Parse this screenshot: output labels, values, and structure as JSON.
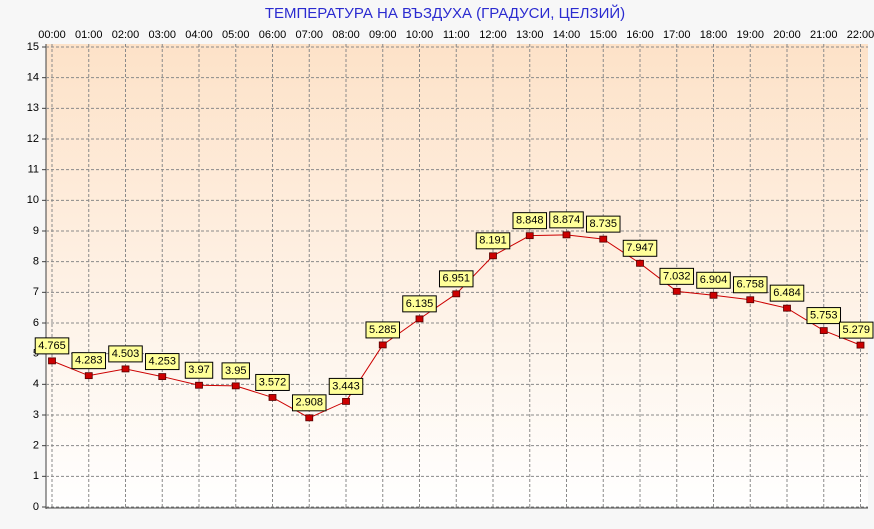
{
  "chart_data": {
    "type": "line",
    "title": "ТЕМПЕРАТУРА НА ВЪЗДУХА  (ГРАДУСИ, ЦЕЛЗИЙ)",
    "categories": [
      "00:00",
      "01:00",
      "02:00",
      "03:00",
      "04:00",
      "05:00",
      "06:00",
      "07:00",
      "08:00",
      "09:00",
      "10:00",
      "11:00",
      "12:00",
      "13:00",
      "14:00",
      "15:00",
      "16:00",
      "17:00",
      "18:00",
      "19:00",
      "20:00",
      "21:00",
      "22:00"
    ],
    "values": [
      4.765,
      4.283,
      4.503,
      4.253,
      3.97,
      3.95,
      3.572,
      2.908,
      3.443,
      5.285,
      6.135,
      6.951,
      8.191,
      8.848,
      8.874,
      8.735,
      7.947,
      7.032,
      6.904,
      6.758,
      6.484,
      5.753,
      5.279
    ],
    "color": "#cc0000",
    "ylim": [
      0,
      15
    ],
    "yticks": [
      0,
      1,
      2,
      3,
      4,
      5,
      6,
      7,
      8,
      9,
      10,
      11,
      12,
      13,
      14,
      15
    ],
    "grid": true
  }
}
